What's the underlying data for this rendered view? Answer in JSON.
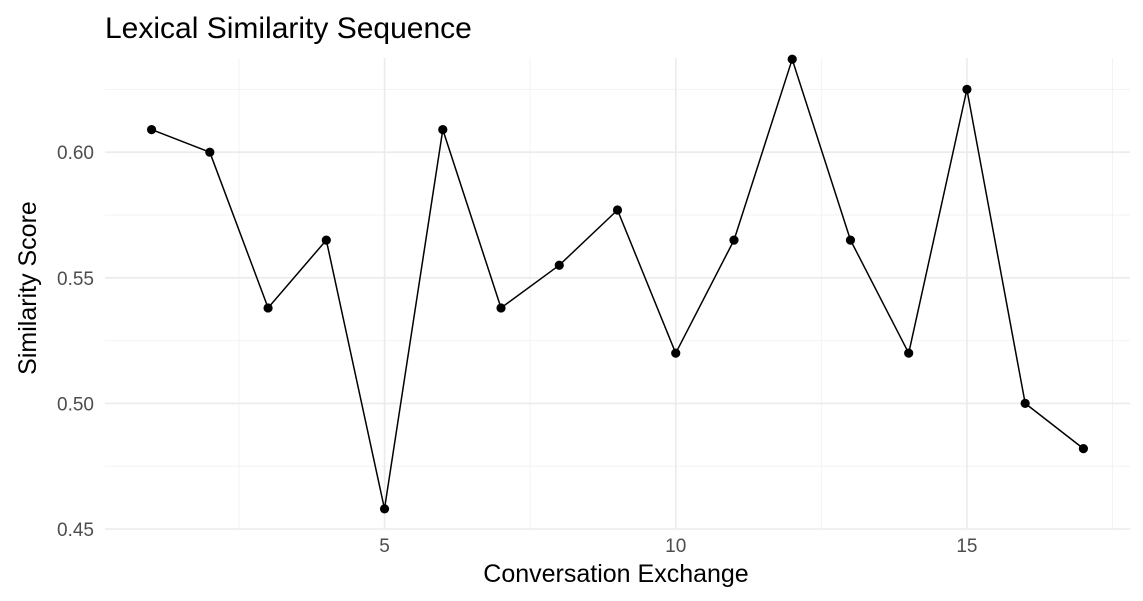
{
  "chart_data": {
    "type": "line",
    "title": "Lexical Similarity Sequence",
    "xlabel": "Conversation Exchange",
    "ylabel": "Similarity Score",
    "x": [
      1,
      2,
      3,
      4,
      5,
      6,
      7,
      8,
      9,
      10,
      11,
      12,
      13,
      14,
      15,
      16,
      17
    ],
    "series": [
      {
        "values": [
          0.609,
          0.6,
          0.538,
          0.565,
          0.458,
          0.609,
          0.538,
          0.555,
          0.577,
          0.52,
          0.565,
          0.637,
          0.565,
          0.52,
          0.625,
          0.5,
          0.482
        ],
        "color": "#000000"
      }
    ],
    "xlim": [
      0.2,
      17.8
    ],
    "ylim": [
      0.45,
      0.6375
    ],
    "x_ticks": [
      5,
      10,
      15
    ],
    "x_tick_labels": [
      "5",
      "10",
      "15"
    ],
    "y_ticks": [
      0.45,
      0.5,
      0.55,
      0.6
    ],
    "y_tick_labels": [
      "0.45",
      "0.50",
      "0.55",
      "0.60"
    ],
    "grid": true,
    "legend": "none",
    "markers": true
  }
}
